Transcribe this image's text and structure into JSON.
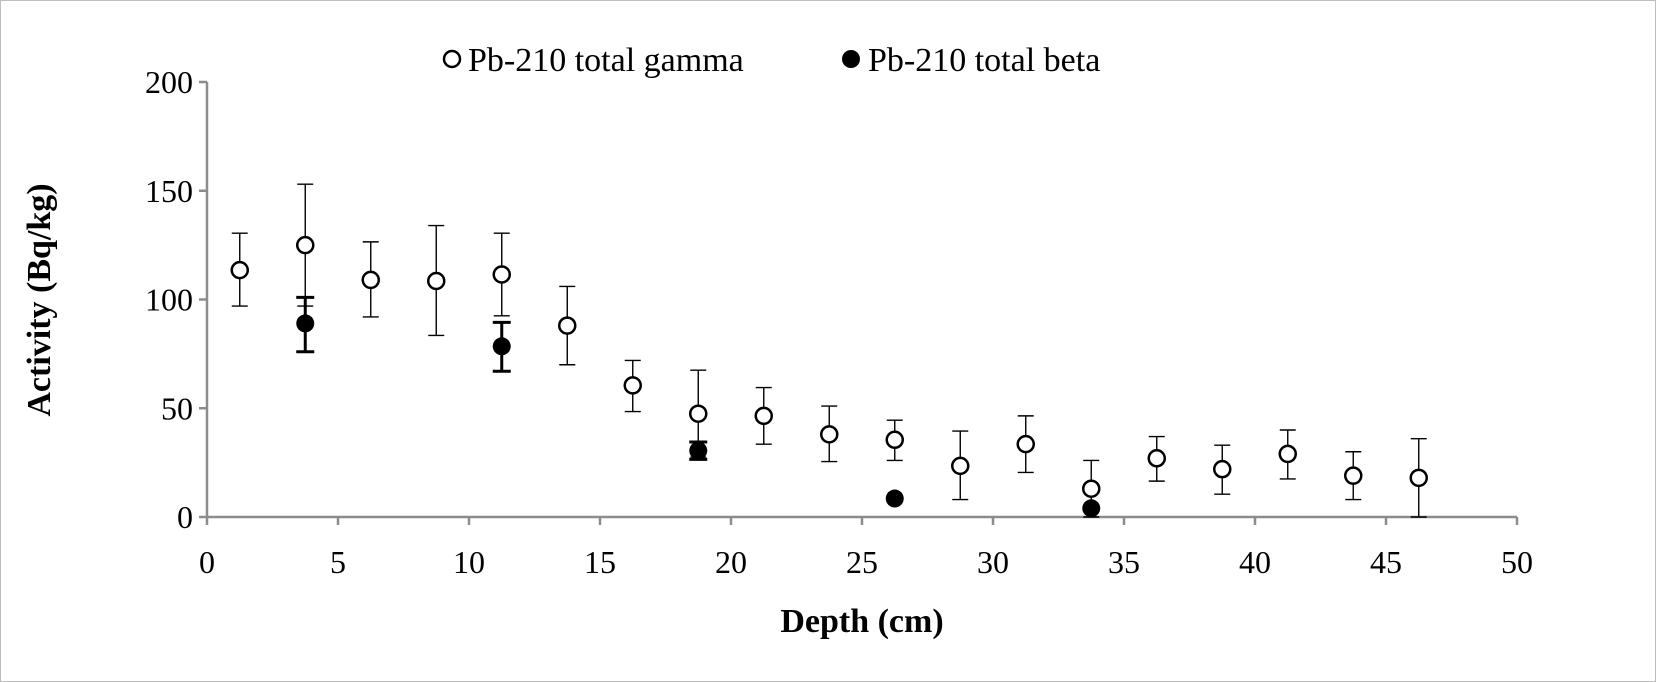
{
  "chart_data": {
    "type": "scatter",
    "xlabel": "Depth (cm)",
    "ylabel": "Activity (Bq/kg)",
    "xlim": [
      0,
      50
    ],
    "ylim": [
      0,
      200
    ],
    "x_ticks": [
      0,
      5,
      10,
      15,
      20,
      25,
      30,
      35,
      40,
      45,
      50
    ],
    "y_ticks": [
      0,
      50,
      100,
      150,
      200
    ],
    "grid": false,
    "legend_position": "top-center",
    "series": [
      {
        "name": "Pb-210 total gamma",
        "marker": "open-circle",
        "color": "#000000",
        "points": [
          {
            "x": 1.25,
            "y": 113.5,
            "lo": 97,
            "hi": 130.5
          },
          {
            "x": 3.75,
            "y": 125,
            "lo": 97,
            "hi": 153
          },
          {
            "x": 6.25,
            "y": 109,
            "lo": 92,
            "hi": 126.5
          },
          {
            "x": 8.75,
            "y": 108.5,
            "lo": 83.5,
            "hi": 134
          },
          {
            "x": 11.25,
            "y": 111.5,
            "lo": 92.5,
            "hi": 130.5
          },
          {
            "x": 13.75,
            "y": 88,
            "lo": 70,
            "hi": 106
          },
          {
            "x": 16.25,
            "y": 60.5,
            "lo": 48.5,
            "hi": 72
          },
          {
            "x": 18.75,
            "y": 47.5,
            "lo": 27.5,
            "hi": 67.5
          },
          {
            "x": 21.25,
            "y": 46.5,
            "lo": 33.5,
            "hi": 59.5
          },
          {
            "x": 23.75,
            "y": 38,
            "lo": 25.5,
            "hi": 51
          },
          {
            "x": 26.25,
            "y": 35.5,
            "lo": 26,
            "hi": 44.5
          },
          {
            "x": 28.75,
            "y": 23.5,
            "lo": 8,
            "hi": 39.5
          },
          {
            "x": 31.25,
            "y": 33.5,
            "lo": 20.5,
            "hi": 46.5
          },
          {
            "x": 33.75,
            "y": 13,
            "lo": 0,
            "hi": 26
          },
          {
            "x": 36.25,
            "y": 27,
            "lo": 16.5,
            "hi": 37
          },
          {
            "x": 38.75,
            "y": 22,
            "lo": 10.5,
            "hi": 33
          },
          {
            "x": 41.25,
            "y": 29,
            "lo": 17.5,
            "hi": 40
          },
          {
            "x": 43.75,
            "y": 19,
            "lo": 8,
            "hi": 30
          },
          {
            "x": 46.25,
            "y": 18,
            "lo": 0,
            "hi": 36
          }
        ]
      },
      {
        "name": "Pb-210 total beta",
        "marker": "filled-circle",
        "color": "#000000",
        "points": [
          {
            "x": 3.75,
            "y": 89,
            "lo": 76,
            "hi": 101
          },
          {
            "x": 11.25,
            "y": 78.5,
            "lo": 67,
            "hi": 89.5
          },
          {
            "x": 18.75,
            "y": 30.5,
            "lo": 26.5,
            "hi": 34.5
          },
          {
            "x": 26.25,
            "y": 8.5,
            "lo": 8.5,
            "hi": 8.5
          },
          {
            "x": 33.75,
            "y": 4,
            "lo": 4,
            "hi": 4
          }
        ]
      }
    ]
  }
}
